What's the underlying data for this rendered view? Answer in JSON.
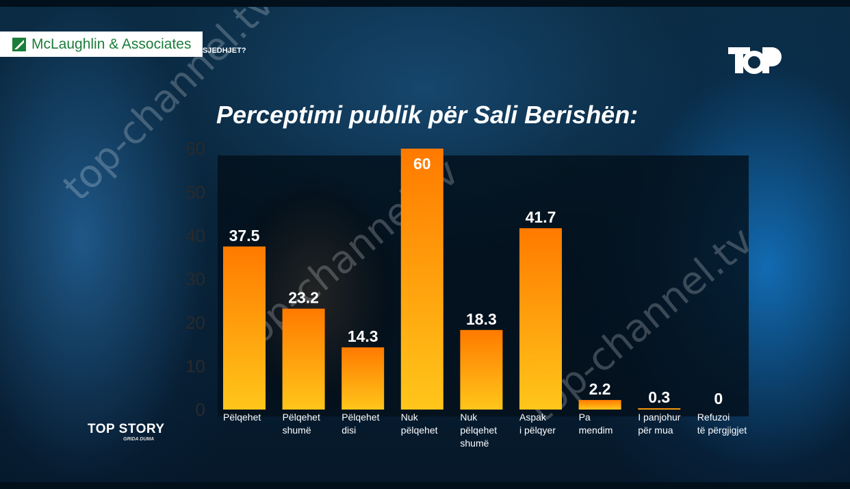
{
  "header": {
    "pollster": "McLaughlin & Associates",
    "question_fragment": "SJEDHJET?"
  },
  "channel_logo": "TOP",
  "show": {
    "name": "TOP STORY",
    "host": "GRIDA DUMA"
  },
  "watermark": "top-channel.tv",
  "colors": {
    "bar_top": "#ff7a00",
    "bar_bottom": "#ffc61a",
    "title": "#ffffff",
    "pollster_brand": "#1a7d3a"
  },
  "chart_data": {
    "type": "bar",
    "title": "Perceptimi publik për Sali Berishën:",
    "categories": [
      "Pëlqehet",
      "Pëlqehet shumë",
      "Pëlqehet disi",
      "Nuk pëlqehet",
      "Nuk pëlqehet shumë",
      "Aspak i pëlqyer",
      "Pa mendim",
      "I panjohur për mua",
      "Refuzoi të përgjigjet"
    ],
    "category_lines": [
      [
        "Pëlqehet"
      ],
      [
        "Pëlqehet",
        "shumë"
      ],
      [
        "Pëlqehet",
        "disi"
      ],
      [
        "Nuk",
        "pëlqehet"
      ],
      [
        "Nuk",
        "pëlqehet",
        "shumë"
      ],
      [
        "Aspak",
        "i pëlqyer"
      ],
      [
        "Pa",
        "mendim"
      ],
      [
        "I panjohur",
        "për mua"
      ],
      [
        "Refuzoi",
        "të përgjigjet"
      ]
    ],
    "values": [
      37.5,
      23.2,
      14.3,
      60,
      18.3,
      41.7,
      2.2,
      0.3,
      0
    ],
    "value_labels": [
      "37.5",
      "23.2",
      "14.3",
      "60",
      "18.3",
      "41.7",
      "2.2",
      "0.3",
      "0"
    ],
    "yticks": [
      "0",
      "10",
      "20",
      "30",
      "40",
      "50",
      "60"
    ],
    "ylim": [
      0,
      60
    ],
    "xlabel": "",
    "ylabel": "",
    "grid": false,
    "legend": "none"
  }
}
